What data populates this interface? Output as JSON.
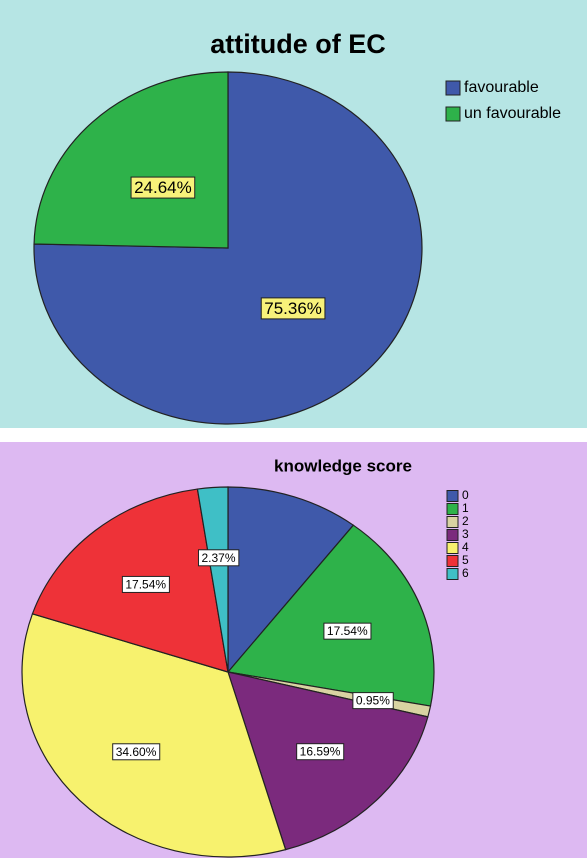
{
  "chart_data": [
    {
      "type": "pie",
      "title": "attitude of EC",
      "categories": [
        "favourable",
        "un favourable"
      ],
      "values": [
        75.36,
        24.64
      ],
      "value_labels": [
        "75.36%",
        "24.64%"
      ],
      "colors": [
        "#3f59aa",
        "#2eb24a"
      ],
      "label_background": "#f7f27a",
      "legend": "right"
    },
    {
      "type": "pie",
      "title": "knowledge score",
      "categories": [
        "0",
        "1",
        "2",
        "3",
        "4",
        "5",
        "6"
      ],
      "values": [
        10.41,
        17.54,
        0.95,
        16.59,
        34.6,
        17.54,
        2.37
      ],
      "value_labels": [
        null,
        "17.54%",
        "0.95%",
        "16.59%",
        "34.60%",
        "17.54%",
        "2.37%"
      ],
      "colors": [
        "#3f59aa",
        "#2eb24a",
        "#d8d3a2",
        "#7b2a7d",
        "#f7f26e",
        "#ee3238",
        "#3fbfc6"
      ],
      "label_background": "#ffffff",
      "legend": "right"
    }
  ]
}
